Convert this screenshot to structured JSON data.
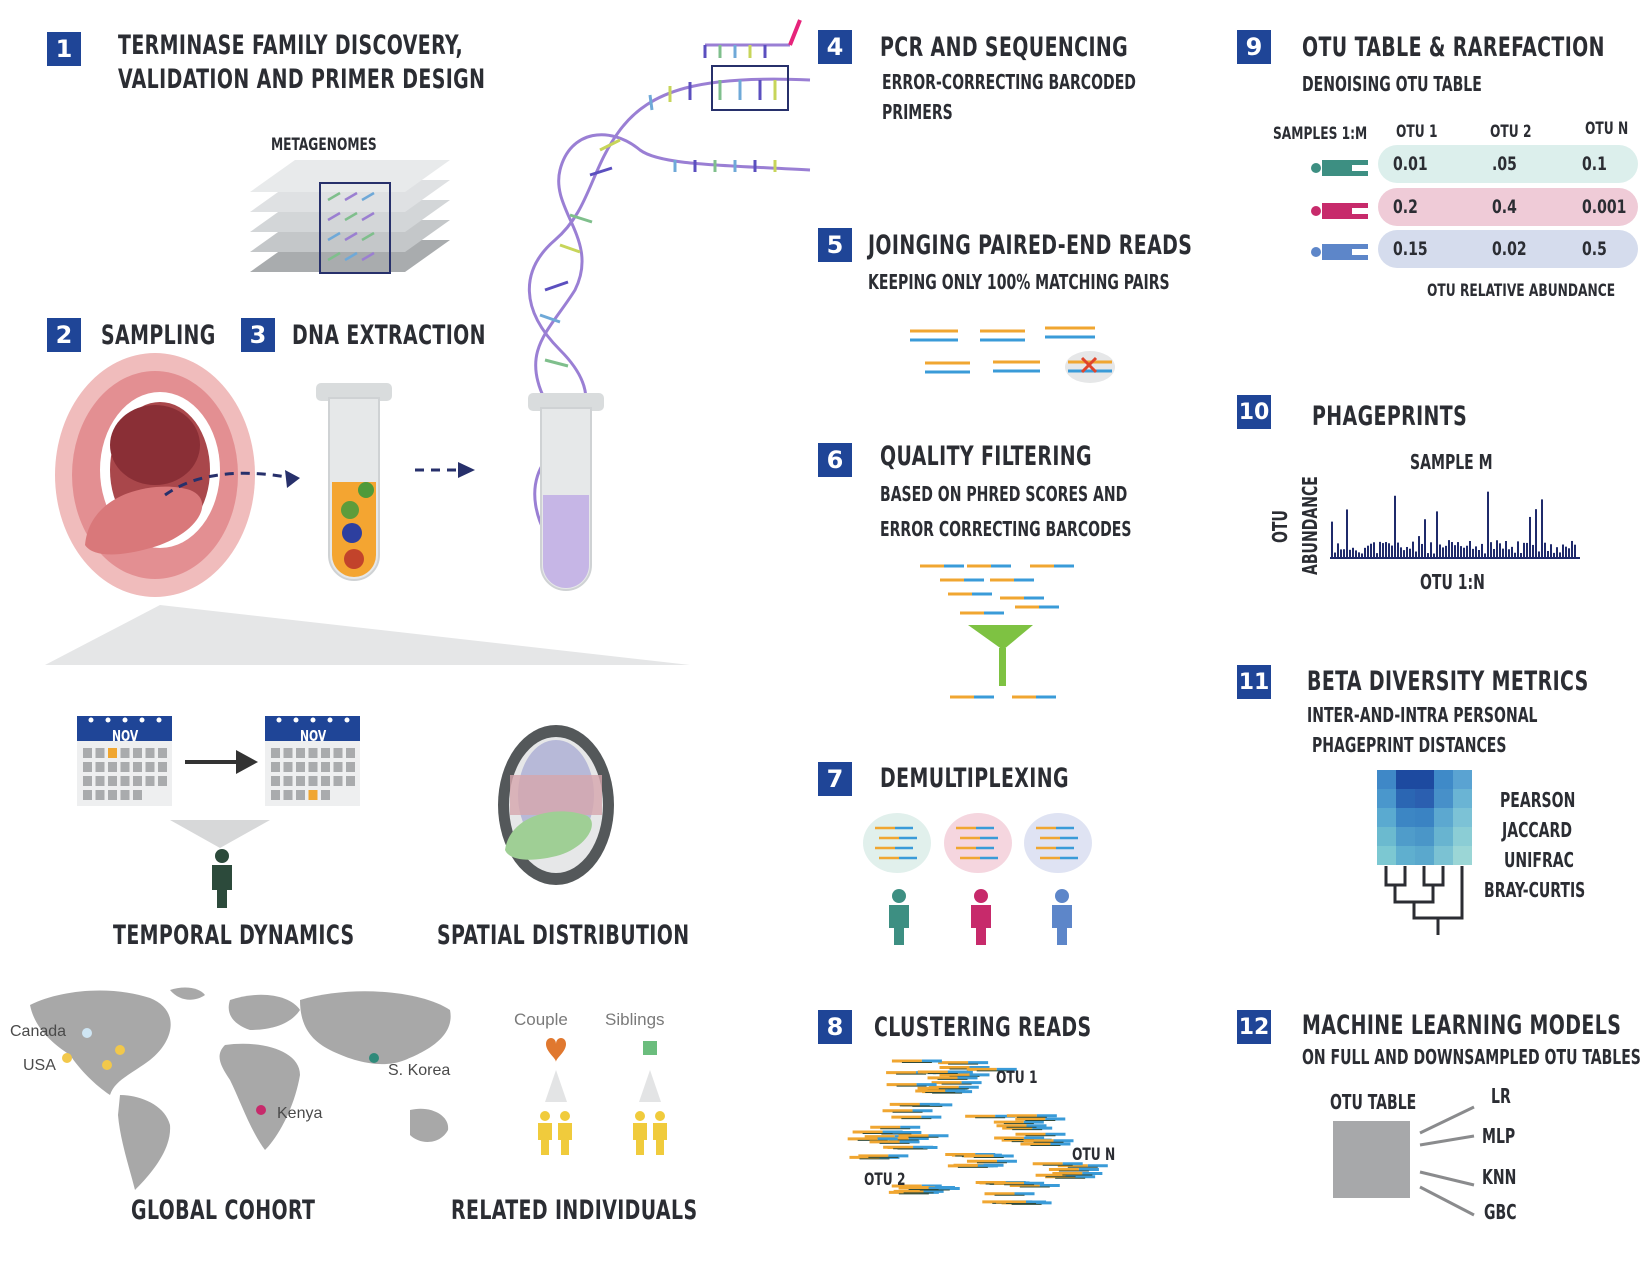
{
  "colors": {
    "badge": "#1f4597",
    "dna": "#9a7fd4",
    "orange_read": "#f0a631",
    "blue_read": "#3a9bd8",
    "green_person": "#3d8f82",
    "red_person": "#c72a6b",
    "blue_person": "#5d86c9"
  },
  "step1": {
    "num": "1",
    "title_line1": "TERMINASE FAMILY DISCOVERY,",
    "title_line2": "VALIDATION AND PRIMER DESIGN",
    "metagenomes": "METAGENOMES"
  },
  "step2": {
    "num": "2",
    "title": "SAMPLING"
  },
  "step3": {
    "num": "3",
    "title": "DNA EXTRACTION"
  },
  "step4": {
    "num": "4",
    "title": "PCR AND SEQUENCING",
    "sub_line1": "ERROR-CORRECTING BARCODED",
    "sub_line2": "PRIMERS"
  },
  "step5": {
    "num": "5",
    "title": "JOINGING PAIRED-END READS",
    "sub": "KEEPING ONLY 100% MATCHING PAIRS"
  },
  "step6": {
    "num": "6",
    "title": "QUALITY FILTERING",
    "sub_line1": "BASED ON PHRED SCORES AND",
    "sub_line2": "ERROR CORRECTING BARCODES"
  },
  "step7": {
    "num": "7",
    "title": "DEMULTIPLEXING"
  },
  "step8": {
    "num": "8",
    "title": "CLUSTERING READS",
    "otu1": "OTU 1",
    "otu2": "OTU 2",
    "otun": "OTU N"
  },
  "step9": {
    "num": "9",
    "title": "OTU TABLE & RAREFACTION",
    "sub": "DENOISING OTU TABLE",
    "row_header": "SAMPLES 1:M",
    "columns": [
      "OTU 1",
      "OTU 2",
      "OTU N"
    ],
    "rows": [
      {
        "values": [
          "0.01",
          ".05",
          "0.1"
        ],
        "color": "#dcefec"
      },
      {
        "values": [
          "0.2",
          "0.4",
          "0.001"
        ],
        "color": "#efcbd7"
      },
      {
        "values": [
          "0.15",
          "0.02",
          "0.5"
        ],
        "color": "#d5dced"
      }
    ],
    "footer": "OTU RELATIVE ABUNDANCE"
  },
  "step10": {
    "num": "10",
    "title": "PHAGEPRINTS",
    "sample": "SAMPLE M",
    "ylabel_line1": "OTU",
    "ylabel_line2": "ABUNDANCE",
    "xlabel": "OTU 1:N"
  },
  "step11": {
    "num": "11",
    "title": "BETA DIVERSITY METRICS",
    "sub_line1": "INTER-AND-INTRA PERSONAL",
    "sub_line2": "PHAGEPRINT DISTANCES",
    "metrics": [
      "PEARSON",
      "JACCARD",
      "UNIFRAC",
      "BRAY-CURTIS"
    ]
  },
  "step12": {
    "num": "12",
    "title": "MACHINE LEARNING MODELS",
    "sub": "ON FULL AND DOWNSAMPLED OTU TABLES",
    "table_label": "OTU TABLE",
    "models": [
      "LR",
      "MLP",
      "KNN",
      "GBC"
    ]
  },
  "cohort": {
    "temporal": "TEMPORAL DYNAMICS",
    "spatial": "SPATIAL DISTRIBUTION",
    "calendar_month": "NOV",
    "global": "GLOBAL COHORT",
    "related": "RELATED INDIVIDUALS",
    "map_labels": [
      "Canada",
      "USA",
      "S. Korea",
      "Kenya"
    ],
    "couple": "Couple",
    "siblings": "Siblings"
  }
}
